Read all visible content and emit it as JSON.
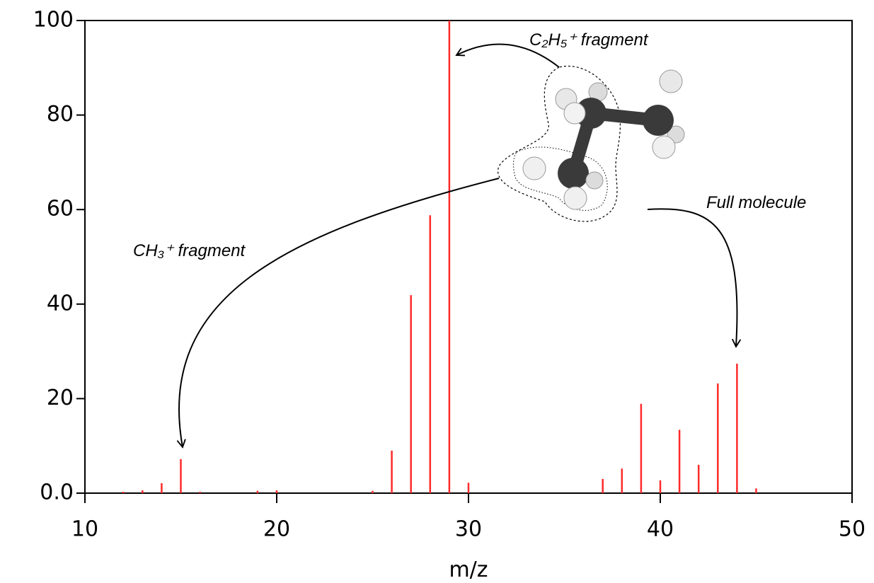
{
  "chart_data": {
    "type": "stick",
    "x_label": "m/z",
    "x": [
      12,
      13,
      14,
      15,
      16,
      19,
      20,
      25,
      26,
      27,
      28,
      29,
      30,
      37,
      38,
      39,
      40,
      41,
      42,
      43,
      44,
      45
    ],
    "values": [
      0.3,
      0.6,
      2.1,
      7.2,
      0.3,
      0.5,
      0.6,
      0.5,
      9.0,
      41.9,
      58.8,
      100,
      2.2,
      3.0,
      5.2,
      18.9,
      2.7,
      13.4,
      6.0,
      23.2,
      27.4,
      1.0
    ],
    "color": "#ff2a2a",
    "xlim": [
      10,
      50
    ],
    "xticks": [
      10,
      20,
      30,
      40,
      50
    ],
    "ylim": [
      0,
      100
    ],
    "yticks": [
      {
        "value": 0,
        "label": "0.0"
      },
      20,
      40,
      60,
      80,
      100
    ],
    "annotations": [
      "C₂H₅⁺ fragment",
      "CH₃⁺ fragment",
      "Full molecule"
    ]
  }
}
